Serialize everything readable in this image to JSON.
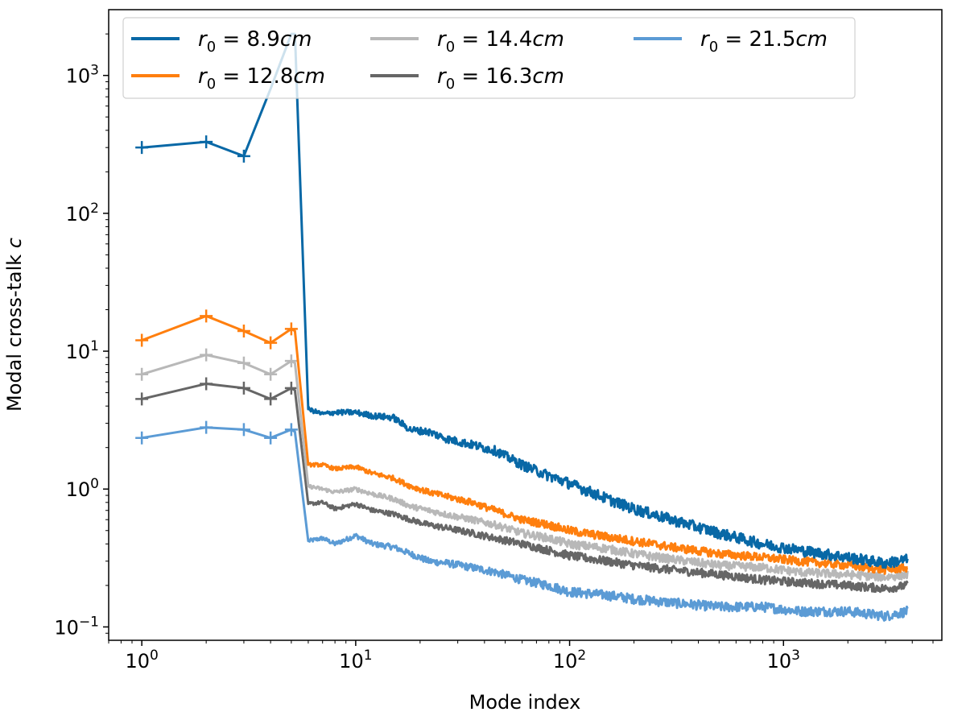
{
  "chart_data": {
    "type": "line",
    "title": "",
    "xlabel": "Mode index",
    "ylabel_main": "Modal cross-talk",
    "ylabel_symbol": "c",
    "xscale": "log",
    "yscale": "log",
    "xlim": [
      0.7,
      5500
    ],
    "ylim": [
      0.08,
      3000
    ],
    "grid": false,
    "legend_position": "top",
    "x_ticks": [
      {
        "value": 1,
        "base": "10",
        "exp": "0"
      },
      {
        "value": 10,
        "base": "10",
        "exp": "1"
      },
      {
        "value": 100,
        "base": "10",
        "exp": "2"
      },
      {
        "value": 1000,
        "base": "10",
        "exp": "3"
      }
    ],
    "y_ticks": [
      {
        "value": 0.1,
        "base": "10",
        "exp": "−1"
      },
      {
        "value": 1,
        "base": "10",
        "exp": "0"
      },
      {
        "value": 10,
        "base": "10",
        "exp": "1"
      },
      {
        "value": 100,
        "base": "10",
        "exp": "2"
      },
      {
        "value": 1000,
        "base": "10",
        "exp": "3"
      }
    ],
    "series": [
      {
        "name": "r0 = 8.9cm",
        "label_symbol": "r",
        "label_sub": "0",
        "label_value": " = 8.9",
        "label_unit": "cm",
        "color": "#0868a6",
        "marker_points": [
          [
            1,
            300
          ],
          [
            2,
            330
          ],
          [
            3,
            260
          ]
        ],
        "x": [
          1,
          2,
          3,
          4,
          5,
          5.2,
          6,
          7,
          8,
          10,
          12,
          15,
          18,
          22,
          27,
          35,
          45,
          60,
          80,
          100,
          150,
          200,
          300,
          500,
          800,
          1200,
          2000,
          3000,
          3800
        ],
        "values": [
          300,
          330,
          260,
          800,
          2000,
          2000,
          3.8,
          3.5,
          3.6,
          3.6,
          3.4,
          3.3,
          2.7,
          2.6,
          2.3,
          2.1,
          1.9,
          1.5,
          1.25,
          1.1,
          0.85,
          0.72,
          0.6,
          0.48,
          0.4,
          0.36,
          0.32,
          0.29,
          0.31
        ],
        "noise": 0.09
      },
      {
        "name": "r0 = 12.8cm",
        "label_symbol": "r",
        "label_sub": "0",
        "label_value": " = 12.8",
        "label_unit": "cm",
        "color": "#ff7f0e",
        "marker_points": [
          [
            1,
            12
          ],
          [
            2,
            18
          ],
          [
            3,
            14
          ],
          [
            4,
            11.5
          ],
          [
            5,
            14.5
          ]
        ],
        "x": [
          1,
          2,
          3,
          4,
          5,
          5.2,
          6,
          7,
          8,
          10,
          12,
          15,
          18,
          22,
          27,
          35,
          45,
          60,
          80,
          100,
          150,
          200,
          300,
          500,
          800,
          1200,
          2000,
          3000,
          3800
        ],
        "values": [
          12,
          18,
          14,
          11.5,
          14.5,
          14,
          1.5,
          1.5,
          1.4,
          1.45,
          1.3,
          1.2,
          1.05,
          0.95,
          0.88,
          0.8,
          0.7,
          0.6,
          0.55,
          0.5,
          0.45,
          0.42,
          0.38,
          0.34,
          0.32,
          0.3,
          0.28,
          0.26,
          0.27
        ],
        "noise": 0.07
      },
      {
        "name": "r0 = 14.4cm",
        "label_symbol": "r",
        "label_sub": "0",
        "label_value": " = 14.4",
        "label_unit": "cm",
        "color": "#b8b8b8",
        "marker_points": [
          [
            1,
            6.8
          ],
          [
            2,
            9.4
          ],
          [
            3,
            8.2
          ],
          [
            4,
            6.8
          ],
          [
            5,
            8.5
          ]
        ],
        "x": [
          1,
          2,
          3,
          4,
          5,
          5.2,
          6,
          7,
          8,
          10,
          12,
          15,
          18,
          22,
          27,
          35,
          45,
          60,
          80,
          100,
          150,
          200,
          300,
          500,
          800,
          1200,
          2000,
          3000,
          3800
        ],
        "values": [
          6.8,
          9.4,
          8.2,
          6.8,
          8.5,
          8.2,
          1.05,
          1.0,
          0.95,
          1.0,
          0.92,
          0.85,
          0.75,
          0.7,
          0.65,
          0.6,
          0.55,
          0.48,
          0.44,
          0.4,
          0.37,
          0.34,
          0.31,
          0.28,
          0.27,
          0.25,
          0.24,
          0.23,
          0.24
        ],
        "noise": 0.07
      },
      {
        "name": "r0 = 16.3cm",
        "label_symbol": "r",
        "label_sub": "0",
        "label_value": " = 16.3",
        "label_unit": "cm",
        "color": "#666666",
        "marker_points": [
          [
            1,
            4.5
          ],
          [
            2,
            5.8
          ],
          [
            3,
            5.4
          ],
          [
            4,
            4.5
          ],
          [
            5,
            5.4
          ]
        ],
        "x": [
          1,
          2,
          3,
          4,
          5,
          5.2,
          6,
          7,
          8,
          10,
          12,
          15,
          18,
          22,
          27,
          35,
          45,
          60,
          80,
          100,
          150,
          200,
          300,
          500,
          800,
          1200,
          2000,
          3000,
          3800
        ],
        "values": [
          4.5,
          5.8,
          5.4,
          4.5,
          5.4,
          5.2,
          0.78,
          0.8,
          0.72,
          0.78,
          0.7,
          0.66,
          0.6,
          0.55,
          0.52,
          0.48,
          0.44,
          0.4,
          0.36,
          0.33,
          0.3,
          0.28,
          0.26,
          0.24,
          0.22,
          0.21,
          0.2,
          0.19,
          0.2
        ],
        "noise": 0.07
      },
      {
        "name": "r0 = 21.5cm",
        "label_symbol": "r",
        "label_sub": "0",
        "label_value": " = 21.5",
        "label_unit": "cm",
        "color": "#5b9bd5",
        "marker_points": [
          [
            1,
            2.35
          ],
          [
            2,
            2.8
          ],
          [
            3,
            2.7
          ],
          [
            4,
            2.35
          ],
          [
            5,
            2.7
          ]
        ],
        "x": [
          1,
          2,
          3,
          4,
          5,
          5.2,
          6,
          7,
          8,
          10,
          12,
          15,
          18,
          22,
          27,
          35,
          45,
          60,
          80,
          100,
          150,
          200,
          300,
          500,
          800,
          1200,
          2000,
          3000,
          3800
        ],
        "values": [
          2.35,
          2.8,
          2.7,
          2.35,
          2.7,
          2.6,
          0.42,
          0.44,
          0.4,
          0.46,
          0.4,
          0.38,
          0.34,
          0.3,
          0.29,
          0.27,
          0.25,
          0.22,
          0.2,
          0.18,
          0.17,
          0.16,
          0.15,
          0.14,
          0.14,
          0.13,
          0.13,
          0.12,
          0.13
        ],
        "noise": 0.08
      }
    ]
  }
}
